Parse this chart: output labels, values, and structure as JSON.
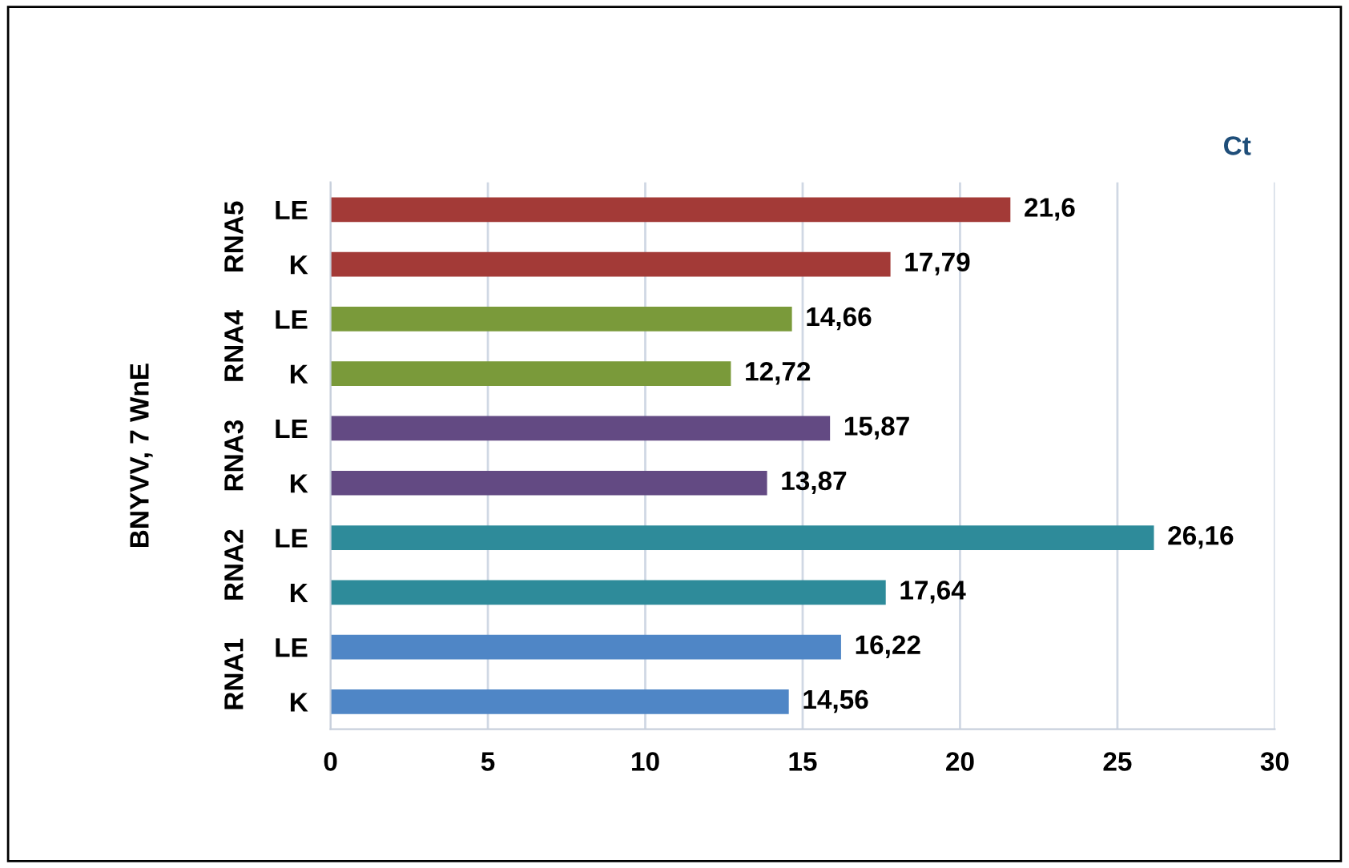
{
  "chart_data": {
    "type": "bar",
    "orientation": "horizontal",
    "title": "Ct",
    "categories": [
      "LE",
      "K",
      "LE",
      "K",
      "LE",
      "K",
      "LE",
      "K",
      "LE",
      "K"
    ],
    "values": [
      21.6,
      17.79,
      14.66,
      12.72,
      15.87,
      13.87,
      26.16,
      17.64,
      16.22,
      14.56
    ],
    "value_labels": [
      "21,6",
      "17,79",
      "14,66",
      "12,72",
      "15,87",
      "13,87",
      "26,16",
      "17,64",
      "16,22",
      "14,56"
    ],
    "colors": [
      "#a33a37",
      "#a33a37",
      "#7a9a3a",
      "#7a9a3a",
      "#634a83",
      "#634a83",
      "#2e8b9a",
      "#2e8b9a",
      "#4f86c6",
      "#4f86c6"
    ],
    "annotations": [
      "BNYVV, 7 WnE",
      "RNA5",
      "RNA4",
      "RNA3",
      "RNA2",
      "RNA1"
    ],
    "xlim": [
      0,
      30
    ],
    "xticks": [
      0,
      5,
      10,
      15,
      20,
      25,
      30
    ],
    "grid": "x",
    "legend": false
  }
}
